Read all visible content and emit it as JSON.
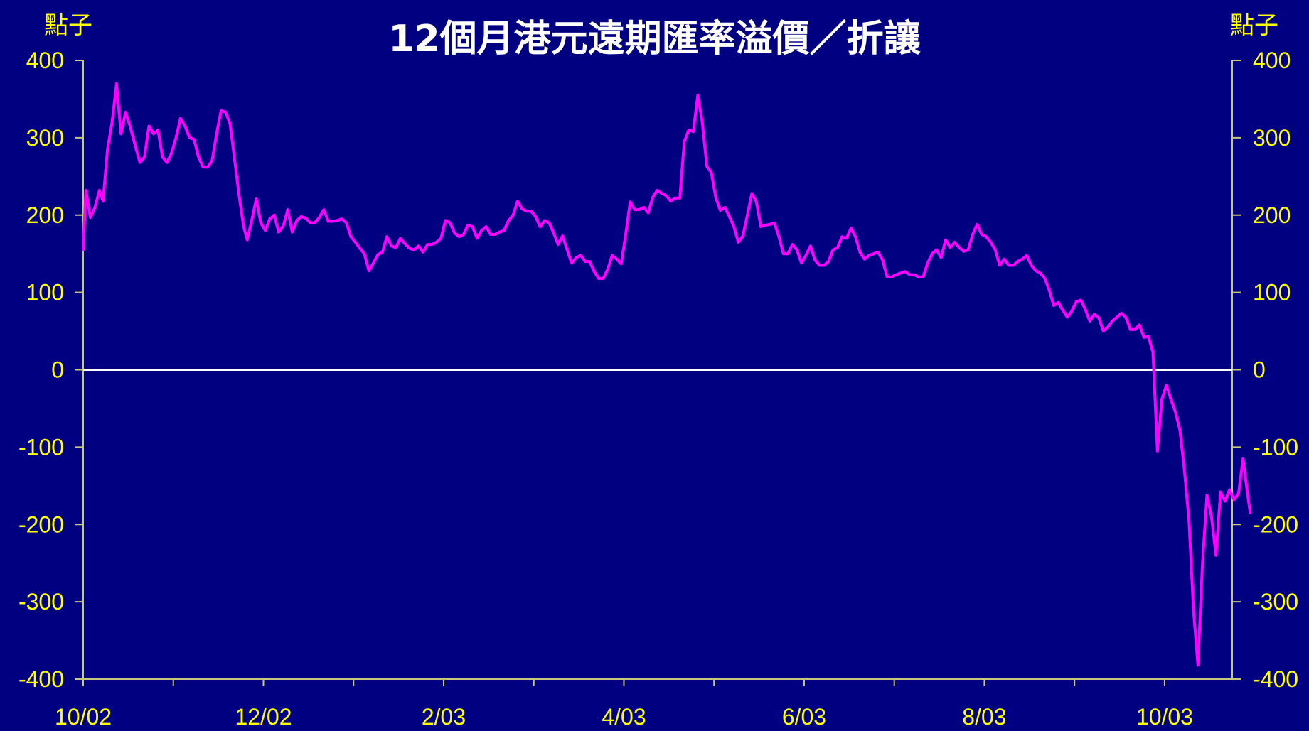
{
  "chart_data": {
    "type": "line",
    "title": "12個月港元遠期匯率溢價／折讓",
    "ylabel_left": "點子",
    "ylabel_right": "點子",
    "ylim": [
      -400,
      400
    ],
    "y_ticks": [
      "400",
      "300",
      "200",
      "100",
      "0",
      "-100",
      "-200",
      "-300",
      "-400"
    ],
    "x_tick_labels": [
      "10/02",
      "12/02",
      "2/03",
      "4/03",
      "6/03",
      "8/03",
      "10/03"
    ],
    "x_label_month_index": [
      0,
      2,
      4,
      6,
      8,
      10,
      12
    ],
    "x_range_months": [
      0,
      12.75
    ],
    "zero_line": true,
    "colors": {
      "background": "#000080",
      "series": "#ff00ff",
      "axis": "#c8c878",
      "ticks": "#ffff00",
      "zero_line": "#ffffff",
      "title": "#ffffff"
    },
    "series": [
      {
        "points": [
          [
            0.0,
            155
          ],
          [
            0.03,
            232
          ],
          [
            0.08,
            197
          ],
          [
            0.13,
            210
          ],
          [
            0.18,
            232
          ],
          [
            0.22,
            218
          ],
          [
            0.27,
            285
          ],
          [
            0.32,
            320
          ],
          [
            0.37,
            370
          ],
          [
            0.42,
            305
          ],
          [
            0.47,
            333
          ],
          [
            0.52,
            315
          ],
          [
            0.57,
            293
          ],
          [
            0.63,
            268
          ],
          [
            0.68,
            275
          ],
          [
            0.73,
            315
          ],
          [
            0.78,
            305
          ],
          [
            0.83,
            310
          ],
          [
            0.88,
            275
          ],
          [
            0.93,
            268
          ],
          [
            0.98,
            280
          ],
          [
            1.03,
            300
          ],
          [
            1.08,
            325
          ],
          [
            1.13,
            315
          ],
          [
            1.18,
            300
          ],
          [
            1.23,
            298
          ],
          [
            1.28,
            275
          ],
          [
            1.33,
            262
          ],
          [
            1.38,
            262
          ],
          [
            1.43,
            270
          ],
          [
            1.48,
            305
          ],
          [
            1.53,
            335
          ],
          [
            1.58,
            333
          ],
          [
            1.63,
            318
          ],
          [
            1.68,
            272
          ],
          [
            1.73,
            225
          ],
          [
            1.78,
            185
          ],
          [
            1.82,
            168
          ],
          [
            1.87,
            193
          ],
          [
            1.92,
            221
          ],
          [
            1.97,
            190
          ],
          [
            2.02,
            180
          ],
          [
            2.07,
            195
          ],
          [
            2.12,
            200
          ],
          [
            2.17,
            178
          ],
          [
            2.22,
            186
          ],
          [
            2.27,
            207
          ],
          [
            2.32,
            178
          ],
          [
            2.37,
            193
          ],
          [
            2.42,
            198
          ],
          [
            2.47,
            196
          ],
          [
            2.52,
            190
          ],
          [
            2.57,
            190
          ],
          [
            2.62,
            197
          ],
          [
            2.67,
            207
          ],
          [
            2.72,
            192
          ],
          [
            2.77,
            192
          ],
          [
            2.82,
            193
          ],
          [
            2.87,
            195
          ],
          [
            2.92,
            190
          ],
          [
            2.97,
            172
          ],
          [
            3.02,
            165
          ],
          [
            3.07,
            157
          ],
          [
            3.12,
            150
          ],
          [
            3.17,
            128
          ],
          [
            3.22,
            138
          ],
          [
            3.27,
            149
          ],
          [
            3.32,
            152
          ],
          [
            3.37,
            172
          ],
          [
            3.42,
            160
          ],
          [
            3.47,
            158
          ],
          [
            3.52,
            170
          ],
          [
            3.57,
            163
          ],
          [
            3.62,
            157
          ],
          [
            3.67,
            155
          ],
          [
            3.72,
            160
          ],
          [
            3.77,
            152
          ],
          [
            3.82,
            162
          ],
          [
            3.87,
            162
          ],
          [
            3.92,
            165
          ],
          [
            3.97,
            170
          ],
          [
            4.02,
            193
          ],
          [
            4.07,
            190
          ],
          [
            4.12,
            177
          ],
          [
            4.17,
            172
          ],
          [
            4.22,
            175
          ],
          [
            4.27,
            187
          ],
          [
            4.32,
            185
          ],
          [
            4.37,
            170
          ],
          [
            4.42,
            180
          ],
          [
            4.47,
            185
          ],
          [
            4.52,
            175
          ],
          [
            4.57,
            175
          ],
          [
            4.62,
            178
          ],
          [
            4.67,
            180
          ],
          [
            4.72,
            193
          ],
          [
            4.77,
            200
          ],
          [
            4.82,
            218
          ],
          [
            4.87,
            208
          ],
          [
            4.92,
            205
          ],
          [
            4.97,
            205
          ],
          [
            5.02,
            198
          ],
          [
            5.07,
            185
          ],
          [
            5.12,
            193
          ],
          [
            5.17,
            190
          ],
          [
            5.22,
            177
          ],
          [
            5.27,
            162
          ],
          [
            5.32,
            173
          ],
          [
            5.37,
            155
          ],
          [
            5.42,
            138
          ],
          [
            5.47,
            145
          ],
          [
            5.52,
            148
          ],
          [
            5.57,
            140
          ],
          [
            5.62,
            140
          ],
          [
            5.67,
            127
          ],
          [
            5.72,
            118
          ],
          [
            5.77,
            118
          ],
          [
            5.82,
            130
          ],
          [
            5.87,
            148
          ],
          [
            5.92,
            143
          ],
          [
            5.97,
            137
          ],
          [
            6.02,
            175
          ],
          [
            6.07,
            217
          ],
          [
            6.12,
            207
          ],
          [
            6.17,
            207
          ],
          [
            6.22,
            210
          ],
          [
            6.27,
            203
          ],
          [
            6.32,
            223
          ],
          [
            6.37,
            232
          ],
          [
            6.42,
            228
          ],
          [
            6.47,
            225
          ],
          [
            6.52,
            218
          ],
          [
            6.57,
            222
          ],
          [
            6.62,
            222
          ],
          [
            6.67,
            295
          ],
          [
            6.72,
            310
          ],
          [
            6.77,
            308
          ],
          [
            6.82,
            355
          ],
          [
            6.87,
            320
          ],
          [
            6.92,
            263
          ],
          [
            6.97,
            255
          ],
          [
            7.02,
            222
          ],
          [
            7.07,
            206
          ],
          [
            7.12,
            210
          ],
          [
            7.17,
            198
          ],
          [
            7.22,
            185
          ],
          [
            7.27,
            165
          ],
          [
            7.32,
            173
          ],
          [
            7.37,
            200
          ],
          [
            7.42,
            228
          ],
          [
            7.47,
            217
          ],
          [
            7.52,
            185
          ],
          [
            7.57,
            187
          ],
          [
            7.62,
            188
          ],
          [
            7.67,
            190
          ],
          [
            7.72,
            172
          ],
          [
            7.77,
            150
          ],
          [
            7.82,
            150
          ],
          [
            7.87,
            162
          ],
          [
            7.92,
            155
          ],
          [
            7.97,
            138
          ],
          [
            8.02,
            148
          ],
          [
            8.07,
            160
          ],
          [
            8.12,
            142
          ],
          [
            8.17,
            135
          ],
          [
            8.22,
            135
          ],
          [
            8.27,
            140
          ],
          [
            8.32,
            155
          ],
          [
            8.37,
            158
          ],
          [
            8.42,
            172
          ],
          [
            8.47,
            170
          ],
          [
            8.52,
            183
          ],
          [
            8.57,
            172
          ],
          [
            8.62,
            152
          ],
          [
            8.67,
            143
          ],
          [
            8.72,
            148
          ],
          [
            8.77,
            150
          ],
          [
            8.82,
            152
          ],
          [
            8.87,
            142
          ],
          [
            8.92,
            120
          ],
          [
            8.97,
            120
          ],
          [
            9.02,
            123
          ],
          [
            9.07,
            125
          ],
          [
            9.12,
            127
          ],
          [
            9.17,
            123
          ],
          [
            9.22,
            123
          ],
          [
            9.27,
            120
          ],
          [
            9.32,
            120
          ],
          [
            9.37,
            138
          ],
          [
            9.42,
            150
          ],
          [
            9.47,
            155
          ],
          [
            9.52,
            145
          ],
          [
            9.57,
            168
          ],
          [
            9.62,
            158
          ],
          [
            9.67,
            165
          ],
          [
            9.72,
            158
          ],
          [
            9.77,
            153
          ],
          [
            9.82,
            155
          ],
          [
            9.87,
            175
          ],
          [
            9.92,
            188
          ],
          [
            9.97,
            175
          ],
          [
            10.02,
            172
          ],
          [
            10.07,
            165
          ],
          [
            10.12,
            155
          ],
          [
            10.17,
            135
          ],
          [
            10.22,
            143
          ],
          [
            10.27,
            135
          ],
          [
            10.32,
            135
          ],
          [
            10.37,
            140
          ],
          [
            10.42,
            143
          ],
          [
            10.47,
            148
          ],
          [
            10.52,
            135
          ],
          [
            10.57,
            128
          ],
          [
            10.62,
            125
          ],
          [
            10.67,
            118
          ],
          [
            10.72,
            103
          ],
          [
            10.77,
            83
          ],
          [
            10.82,
            87
          ],
          [
            10.87,
            77
          ],
          [
            10.92,
            68
          ],
          [
            10.97,
            76
          ],
          [
            11.02,
            88
          ],
          [
            11.07,
            90
          ],
          [
            11.12,
            78
          ],
          [
            11.17,
            63
          ],
          [
            11.22,
            72
          ],
          [
            11.27,
            67
          ],
          [
            11.32,
            50
          ],
          [
            11.37,
            55
          ],
          [
            11.42,
            63
          ],
          [
            11.47,
            68
          ],
          [
            11.52,
            73
          ],
          [
            11.57,
            68
          ],
          [
            11.62,
            52
          ],
          [
            11.67,
            52
          ],
          [
            11.72,
            58
          ],
          [
            11.77,
            42
          ],
          [
            11.82,
            43
          ],
          [
            11.87,
            23
          ],
          [
            11.92,
            -105
          ],
          [
            11.97,
            -38
          ],
          [
            12.02,
            -20
          ],
          [
            12.07,
            -38
          ],
          [
            12.12,
            -55
          ],
          [
            12.17,
            -78
          ],
          [
            12.22,
            -130
          ],
          [
            12.27,
            -195
          ],
          [
            12.32,
            -310
          ],
          [
            12.37,
            -382
          ],
          [
            12.42,
            -250
          ],
          [
            12.47,
            -162
          ],
          [
            12.52,
            -190
          ],
          [
            12.57,
            -240
          ],
          [
            12.62,
            -158
          ],
          [
            12.67,
            -170
          ],
          [
            12.72,
            -155
          ],
          [
            12.77,
            -168
          ],
          [
            12.82,
            -160
          ],
          [
            12.87,
            -115
          ],
          [
            12.92,
            -160
          ],
          [
            12.95,
            -185
          ]
        ]
      }
    ]
  }
}
